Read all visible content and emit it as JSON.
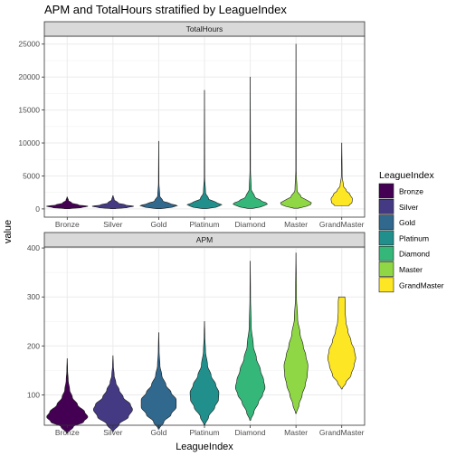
{
  "chart_data": {
    "type": "violin",
    "title": "APM and TotalHours stratified by LeagueIndex",
    "xlabel": "LeagueIndex",
    "ylabel": "value",
    "categories": [
      "Bronze",
      "Silver",
      "Gold",
      "Platinum",
      "Diamond",
      "Master",
      "GrandMaster"
    ],
    "colors": [
      "#440154",
      "#443A83",
      "#31688E",
      "#21908C",
      "#35B779",
      "#8FD744",
      "#FDE725"
    ],
    "legend": {
      "title": "LeagueIndex",
      "position": "right"
    },
    "facets": [
      {
        "label": "TotalHours",
        "ylim": [
          -1250,
          26200
        ],
        "yticks": [
          0,
          5000,
          10000,
          15000,
          20000,
          25000
        ],
        "violins": [
          {
            "category": "Bronze",
            "min": 30,
            "max": 1800,
            "profile": [
              [
                30,
                0.12
              ],
              [
                200,
                0.7
              ],
              [
                400,
                1.0
              ],
              [
                600,
                0.55
              ],
              [
                900,
                0.22
              ],
              [
                1300,
                0.06
              ],
              [
                1800,
                0.01
              ]
            ]
          },
          {
            "category": "Silver",
            "min": 30,
            "max": 2000,
            "profile": [
              [
                30,
                0.12
              ],
              [
                200,
                0.7
              ],
              [
                400,
                1.0
              ],
              [
                600,
                0.6
              ],
              [
                900,
                0.25
              ],
              [
                1400,
                0.06
              ],
              [
                2000,
                0.01
              ]
            ]
          },
          {
            "category": "Gold",
            "min": 30,
            "max": 10260,
            "profile": [
              [
                30,
                0.1
              ],
              [
                250,
                0.65
              ],
              [
                500,
                0.9
              ],
              [
                800,
                0.55
              ],
              [
                1200,
                0.2
              ],
              [
                2000,
                0.05
              ],
              [
                4000,
                0.012
              ],
              [
                10260,
                0.004
              ]
            ]
          },
          {
            "category": "Platinum",
            "min": 50,
            "max": 18000,
            "profile": [
              [
                50,
                0.1
              ],
              [
                300,
                0.6
              ],
              [
                600,
                0.85
              ],
              [
                1000,
                0.55
              ],
              [
                1500,
                0.2
              ],
              [
                2500,
                0.05
              ],
              [
                5000,
                0.012
              ],
              [
                18000,
                0.004
              ]
            ]
          },
          {
            "category": "Diamond",
            "min": 60,
            "max": 20000,
            "profile": [
              [
                60,
                0.1
              ],
              [
                400,
                0.65
              ],
              [
                800,
                0.85
              ],
              [
                1200,
                0.55
              ],
              [
                1800,
                0.22
              ],
              [
                3000,
                0.05
              ],
              [
                6000,
                0.012
              ],
              [
                20000,
                0.004
              ]
            ]
          },
          {
            "category": "Master",
            "min": 100,
            "max": 25000,
            "profile": [
              [
                100,
                0.1
              ],
              [
                400,
                0.5
              ],
              [
                800,
                0.8
              ],
              [
                1200,
                0.6
              ],
              [
                1800,
                0.25
              ],
              [
                2800,
                0.05
              ],
              [
                6000,
                0.01
              ],
              [
                25000,
                0.004
              ]
            ]
          },
          {
            "category": "GrandMaster",
            "min": 500,
            "max": 10000,
            "profile": [
              [
                500,
                0.35
              ],
              [
                1000,
                0.5
              ],
              [
                1500,
                0.52
              ],
              [
                2200,
                0.4
              ],
              [
                2800,
                0.22
              ],
              [
                3500,
                0.08
              ],
              [
                5000,
                0.02
              ],
              [
                10000,
                0.004
              ]
            ]
          }
        ]
      },
      {
        "label": "APM",
        "ylim": [
          38,
          402
        ],
        "yticks": [
          100,
          200,
          300,
          400
        ],
        "violins": [
          {
            "category": "Bronze",
            "min": 22,
            "max": 174,
            "profile": [
              [
                22,
                0.02
              ],
              [
                35,
                0.3
              ],
              [
                45,
                0.8
              ],
              [
                55,
                1.0
              ],
              [
                65,
                0.85
              ],
              [
                80,
                0.5
              ],
              [
                95,
                0.25
              ],
              [
                110,
                0.12
              ],
              [
                130,
                0.05
              ],
              [
                150,
                0.02
              ],
              [
                174,
                0.005
              ]
            ]
          },
          {
            "category": "Silver",
            "min": 25,
            "max": 180,
            "profile": [
              [
                25,
                0.02
              ],
              [
                40,
                0.3
              ],
              [
                55,
                0.75
              ],
              [
                70,
                0.95
              ],
              [
                80,
                0.85
              ],
              [
                95,
                0.5
              ],
              [
                110,
                0.3
              ],
              [
                125,
                0.14
              ],
              [
                140,
                0.06
              ],
              [
                160,
                0.02
              ],
              [
                180,
                0.005
              ]
            ]
          },
          {
            "category": "Gold",
            "min": 30,
            "max": 227,
            "profile": [
              [
                30,
                0.02
              ],
              [
                45,
                0.25
              ],
              [
                60,
                0.6
              ],
              [
                75,
                0.85
              ],
              [
                90,
                0.85
              ],
              [
                105,
                0.6
              ],
              [
                120,
                0.35
              ],
              [
                140,
                0.15
              ],
              [
                160,
                0.06
              ],
              [
                190,
                0.02
              ],
              [
                227,
                0.005
              ]
            ]
          },
          {
            "category": "Platinum",
            "min": 38,
            "max": 250,
            "profile": [
              [
                38,
                0.02
              ],
              [
                55,
                0.2
              ],
              [
                75,
                0.5
              ],
              [
                90,
                0.68
              ],
              [
                105,
                0.7
              ],
              [
                120,
                0.55
              ],
              [
                140,
                0.32
              ],
              [
                160,
                0.15
              ],
              [
                190,
                0.05
              ],
              [
                220,
                0.02
              ],
              [
                250,
                0.005
              ]
            ]
          },
          {
            "category": "Diamond",
            "min": 48,
            "max": 373,
            "profile": [
              [
                48,
                0.02
              ],
              [
                65,
                0.18
              ],
              [
                85,
                0.4
              ],
              [
                100,
                0.6
              ],
              [
                115,
                0.72
              ],
              [
                130,
                0.65
              ],
              [
                150,
                0.5
              ],
              [
                175,
                0.3
              ],
              [
                200,
                0.15
              ],
              [
                240,
                0.05
              ],
              [
                300,
                0.015
              ],
              [
                373,
                0.004
              ]
            ]
          },
          {
            "category": "Master",
            "min": 62,
            "max": 390,
            "profile": [
              [
                62,
                0.02
              ],
              [
                80,
                0.15
              ],
              [
                100,
                0.3
              ],
              [
                120,
                0.45
              ],
              [
                140,
                0.55
              ],
              [
                160,
                0.58
              ],
              [
                180,
                0.48
              ],
              [
                200,
                0.35
              ],
              [
                225,
                0.2
              ],
              [
                255,
                0.08
              ],
              [
                300,
                0.025
              ],
              [
                390,
                0.004
              ]
            ]
          },
          {
            "category": "GrandMaster",
            "min": 112,
            "max": 300,
            "profile": [
              [
                112,
                0.02
              ],
              [
                125,
                0.2
              ],
              [
                140,
                0.45
              ],
              [
                160,
                0.6
              ],
              [
                175,
                0.68
              ],
              [
                190,
                0.62
              ],
              [
                210,
                0.45
              ],
              [
                230,
                0.3
              ],
              [
                250,
                0.2
              ],
              [
                270,
                0.17
              ],
              [
                290,
                0.17
              ],
              [
                300,
                0.15
              ]
            ]
          }
        ]
      }
    ]
  }
}
